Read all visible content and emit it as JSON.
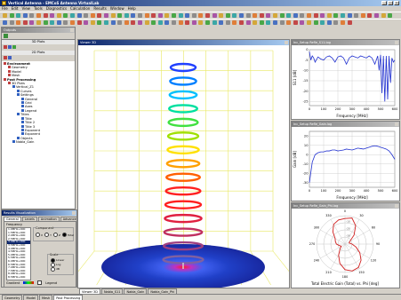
{
  "window": {
    "title": "Vertical Antenna - EMCoS Antenna VirtualLab"
  },
  "menu": [
    "File",
    "Edit",
    "View",
    "Tools",
    "Diagnostics",
    "Calculation",
    "Results",
    "Window",
    "Help"
  ],
  "outputs_panel": {
    "title": "Outputs",
    "section_3d": "3D Plots",
    "section_2d": "2D Plots",
    "tree": [
      {
        "label": "Environment",
        "level": 0
      },
      {
        "label": "Geometry",
        "level": 1
      },
      {
        "label": "Model",
        "level": 1
      },
      {
        "label": "Mesh",
        "level": 1
      },
      {
        "label": "Post Processing",
        "level": 0
      },
      {
        "label": "3D Plots",
        "level": 1
      },
      {
        "label": "Vertical_Z1",
        "level": 2
      },
      {
        "label": "Curves",
        "level": 3
      },
      {
        "label": "Settings",
        "level": 3
      },
      {
        "label": "General",
        "level": 4
      },
      {
        "label": "Grid",
        "level": 4
      },
      {
        "label": "Axes",
        "level": 4
      },
      {
        "label": "Legend",
        "level": 4
      },
      {
        "label": "Titles",
        "level": 3
      },
      {
        "label": "Title",
        "level": 4
      },
      {
        "label": "Title 2",
        "level": 4
      },
      {
        "label": "Title 3",
        "level": 4
      },
      {
        "label": "Exponent",
        "level": 4
      },
      {
        "label": "Exponent",
        "level": 4
      },
      {
        "label": "Objects",
        "level": 3
      },
      {
        "label": "Nabla_Gain",
        "level": 2
      }
    ]
  },
  "settings_dialog": {
    "title": "Results Visualization",
    "tabs": [
      "General",
      "Levels",
      "Animation",
      "Advanced"
    ],
    "frequency_label": "Frequency",
    "frequencies": [
      "1.0MHz+000",
      "1.5MHz+000",
      "2.0MHz+000",
      "2.5MHz+000",
      "3.0MHz+000",
      "3.5MHz+000",
      "4.0MHz+000",
      "4.5MHz+000",
      "5.0MHz+000",
      "5.5MHz+000",
      "6.0MHz+000",
      "6.5MHz+000",
      "7.0MHz+000",
      "7.5MHz+000",
      "8.0MHz+000",
      "8.5MHz+000"
    ],
    "selected_frequency_index": 4,
    "component_label": "Component",
    "components": [
      "X",
      "Y",
      "Z",
      "Total"
    ],
    "scale_label": "Scale",
    "scales": [
      "Linear",
      "Log",
      "dB"
    ],
    "gradient_label": "Gradient",
    "legend_label": "Legend"
  },
  "viewer": {
    "title": "Viewer 3D"
  },
  "chart_windows": [
    {
      "title": "Inc_Setup Refle_S11.log"
    },
    {
      "title": "Inc_Setup Refle_Gain.log"
    },
    {
      "title": "Inc_Setup Refle_Gain_Phi.log"
    }
  ],
  "chart_data": [
    {
      "type": "line",
      "xlabel": "Frequency [MHz]",
      "ylabel": "S11 [dB]",
      "xticks": [
        0,
        100,
        200,
        300,
        400,
        500,
        600
      ],
      "yticks": [
        0,
        -5,
        -10,
        -15,
        -20,
        -25
      ],
      "xlim": [
        0,
        600
      ],
      "ylim": [
        -27,
        0
      ],
      "grid": true,
      "series": [
        {
          "x": [
            0,
            10,
            20,
            30,
            40,
            60,
            80,
            100,
            120,
            140,
            160,
            180,
            200,
            220,
            240,
            260,
            280,
            300,
            320,
            340,
            360,
            380,
            400,
            420,
            440,
            460,
            480,
            490,
            500,
            510,
            520,
            530,
            540,
            550,
            560,
            570,
            580,
            590,
            600
          ],
          "y": [
            -1,
            -5,
            -3,
            -4,
            -6,
            -3.5,
            -4.5,
            -5,
            -3.5,
            -3,
            -4,
            -6,
            -3.5,
            -3,
            -4,
            -7,
            -4,
            -3,
            -3.5,
            -4,
            -3,
            -3.5,
            -4,
            -3,
            -4,
            -7,
            -3,
            -10,
            -2.5,
            -21,
            -3,
            -25,
            -3,
            -24,
            -3,
            -16,
            -4,
            -6,
            -5
          ]
        }
      ]
    },
    {
      "type": "line",
      "xlabel": "Frequency [MHz]",
      "ylabel": "Gain [dB]",
      "xticks": [
        0,
        100,
        200,
        300,
        400,
        500,
        600
      ],
      "yticks": [
        20,
        10,
        0,
        -10,
        -20,
        -30
      ],
      "xlim": [
        0,
        600
      ],
      "ylim": [
        -35,
        25
      ],
      "grid": true,
      "series": [
        {
          "x": [
            0,
            20,
            40,
            60,
            80,
            100,
            120,
            140,
            160,
            180,
            200,
            220,
            240,
            260,
            280,
            300,
            320,
            340,
            360,
            380,
            400,
            420,
            440,
            460,
            480,
            500,
            520,
            540,
            560,
            580,
            600
          ],
          "y": [
            -30,
            -8,
            0,
            2,
            3,
            3,
            4,
            4,
            5,
            5,
            4,
            4.5,
            5,
            6,
            5.5,
            5,
            6,
            7,
            6.5,
            6,
            7,
            8,
            9,
            9.5,
            9,
            8,
            7,
            6,
            4,
            0,
            -5
          ]
        }
      ]
    },
    {
      "type": "polar",
      "title": "Total Electric Gain (Total)  vs. Phi [deg]",
      "angle_labels": [
        "0",
        "30",
        "60",
        "90",
        "120",
        "150",
        "180",
        "210",
        "240",
        "270",
        "300",
        "330"
      ],
      "radial_ticks": [
        "-10",
        "-20",
        "-30"
      ],
      "series": [
        {
          "angle_deg": [
            0,
            15,
            30,
            45,
            60,
            75,
            90,
            105,
            120,
            135,
            150,
            165,
            180,
            195,
            210,
            225,
            240,
            255,
            270,
            285,
            300,
            315,
            330,
            345
          ],
          "r_norm": [
            0.9,
            0.95,
            0.75,
            0.45,
            0.2,
            0.15,
            0.25,
            0.4,
            0.6,
            0.8,
            0.95,
            0.98,
            0.9,
            0.7,
            0.45,
            0.25,
            0.15,
            0.2,
            0.3,
            0.35,
            0.4,
            0.6,
            0.8,
            0.88
          ]
        }
      ]
    }
  ],
  "bottom_tabs": [
    "Viewer 3D",
    "Nabla_S11",
    "Nabla_Gain",
    "Nabla_Gain_Phi"
  ],
  "nav_tabs": [
    "Geometry",
    "Model",
    "Mesh",
    "Post Processing"
  ],
  "colors": {
    "accent": "#0a246a",
    "plot_line": "#2030d0",
    "polar_line": "#d02020"
  }
}
